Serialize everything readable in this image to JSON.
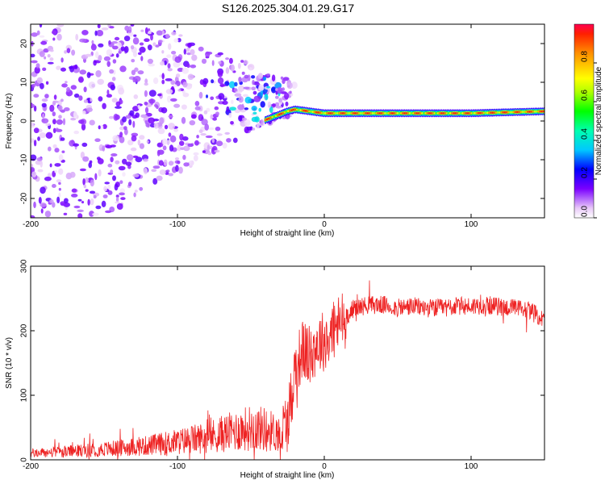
{
  "title": "S126.2025.304.01.29.G17",
  "colors": {
    "snr_line": "#ee2222",
    "axis": "#000000",
    "background": "#ffffff"
  },
  "chart_data": [
    {
      "type": "heatmap",
      "name": "spectrogram",
      "xlabel": "Height of straight line (km)",
      "ylabel": "Frequency (Hz)",
      "xlim": [
        -200,
        150
      ],
      "ylim": [
        -25,
        25
      ],
      "xticks": [
        -200,
        -100,
        0,
        100
      ],
      "xtick_labels": [
        "-200",
        "-100",
        "0",
        "100"
      ],
      "yticks": [
        20,
        10,
        0,
        -10,
        -20
      ],
      "ytick_labels": [
        "20",
        "10",
        "0",
        "-10",
        "-20"
      ],
      "colorbar": {
        "label": "Normalized spectral amplitude",
        "range": [
          0,
          1
        ],
        "ticks": [
          0.0,
          0.2,
          0.4,
          0.6,
          0.8
        ],
        "tick_labels": [
          "0.0",
          "0.2",
          "0.4",
          "0.6",
          "0.8"
        ],
        "colormap": "rainbow (magenta-blue-cyan-green-yellow-red)"
      },
      "ridge": {
        "description": "dominant frequency line",
        "points": [
          {
            "x": -35,
            "f": 1.0,
            "amp": 0.85
          },
          {
            "x": -25,
            "f": 2.5,
            "amp": 0.6
          },
          {
            "x": -20,
            "f": 3.0,
            "amp": 0.9
          },
          {
            "x": 0,
            "f": 2.0,
            "amp": 0.7
          },
          {
            "x": 50,
            "f": 2.0,
            "amp": 0.95
          },
          {
            "x": 100,
            "f": 2.0,
            "amp": 0.8
          },
          {
            "x": 150,
            "f": 2.5,
            "amp": 0.95
          }
        ]
      }
    },
    {
      "type": "line",
      "name": "snr",
      "xlabel": "Height of straight line (km)",
      "ylabel": "SNR (10 * v/v)",
      "xlim": [
        -200,
        150
      ],
      "ylim": [
        0,
        300
      ],
      "xticks": [
        -200,
        -100,
        0,
        100
      ],
      "xtick_labels": [
        "-200",
        "-100",
        "0",
        "100"
      ],
      "yticks": [
        0,
        100,
        200,
        300
      ],
      "ytick_labels": [
        "0",
        "100",
        "200",
        "300"
      ],
      "series": [
        {
          "name": "SNR",
          "x": [
            -200,
            -180,
            -160,
            -140,
            -120,
            -100,
            -80,
            -60,
            -50,
            -40,
            -30,
            -25,
            -20,
            -15,
            -10,
            -5,
            0,
            10,
            20,
            30,
            40,
            50,
            60,
            70,
            80,
            90,
            100,
            110,
            120,
            130,
            140,
            150
          ],
          "values": [
            10,
            12,
            15,
            18,
            22,
            28,
            35,
            45,
            50,
            48,
            40,
            60,
            140,
            170,
            160,
            180,
            185,
            210,
            235,
            240,
            240,
            235,
            238,
            235,
            235,
            238,
            238,
            240,
            237,
            235,
            232,
            215
          ]
        }
      ]
    }
  ]
}
